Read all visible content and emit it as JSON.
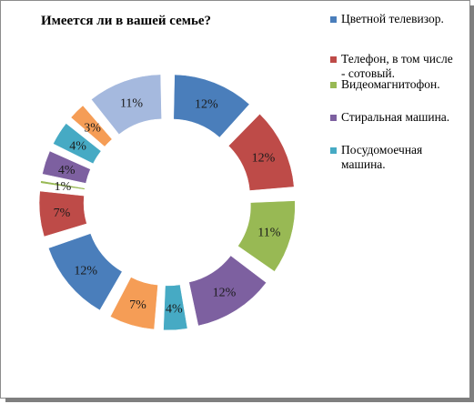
{
  "chart_data": {
    "type": "pie",
    "title": "Имеется  ли в вашей семье?",
    "series": [
      {
        "name": "Цветной телевизор.",
        "value": 12,
        "label": "12%",
        "color": "#4a7ebb"
      },
      {
        "name": "Телефон, в том числе\n- сотовый.",
        "value": 12,
        "label": "12%",
        "color": "#be4b48"
      },
      {
        "name": "Видеомагнитофон.",
        "value": 11,
        "label": "11%",
        "color": "#98b954"
      },
      {
        "name": "Стиральная машина.",
        "value": 12,
        "label": "12%",
        "color": "#7d60a0"
      },
      {
        "name": "Посудомоечная\nмашина.",
        "value": 4,
        "label": "4%",
        "color": "#46aac4"
      },
      {
        "name": "",
        "value": 7,
        "label": "7%",
        "color": "#f59d56"
      },
      {
        "name": "",
        "value": 12,
        "label": "12%",
        "color": "#4a7ebb"
      },
      {
        "name": "",
        "value": 7,
        "label": "7%",
        "color": "#be4b48"
      },
      {
        "name": "",
        "value": 1,
        "label": "1%",
        "color": "#98b954"
      },
      {
        "name": "",
        "value": 4,
        "label": "4%",
        "color": "#7d60a0"
      },
      {
        "name": "",
        "value": 4,
        "label": "4%",
        "color": "#46aac4"
      },
      {
        "name": "",
        "value": 3,
        "label": "3%",
        "color": "#f59d56"
      },
      {
        "name": "",
        "value": 11,
        "label": "11%",
        "color": "#a5b9de"
      }
    ],
    "legend_position": "right",
    "legend_entries": [
      {
        "label": "Цветной телевизор.",
        "color": "#4a7ebb"
      },
      {
        "label": "Телефон, в том числе\n- сотовый.",
        "color": "#be4b48"
      },
      {
        "label": "Видеомагнитофон.",
        "color": "#98b954"
      },
      {
        "label": "Стиральная машина.",
        "color": "#7d60a0"
      },
      {
        "label": "Посудомоечная\nмашина.",
        "color": "#46aac4"
      }
    ]
  }
}
